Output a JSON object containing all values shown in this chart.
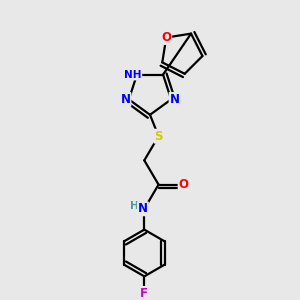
{
  "background_color": "#e8e8e8",
  "bond_color": "#000000",
  "atom_colors": {
    "N": "#0000ff",
    "O": "#ff0000",
    "S": "#cccc00",
    "F": "#cc00cc",
    "H": "#4a9a9a",
    "C": "#000000"
  },
  "figsize": [
    3.0,
    3.0
  ],
  "dpi": 100,
  "xlim": [
    0,
    10
  ],
  "ylim": [
    0,
    10
  ]
}
